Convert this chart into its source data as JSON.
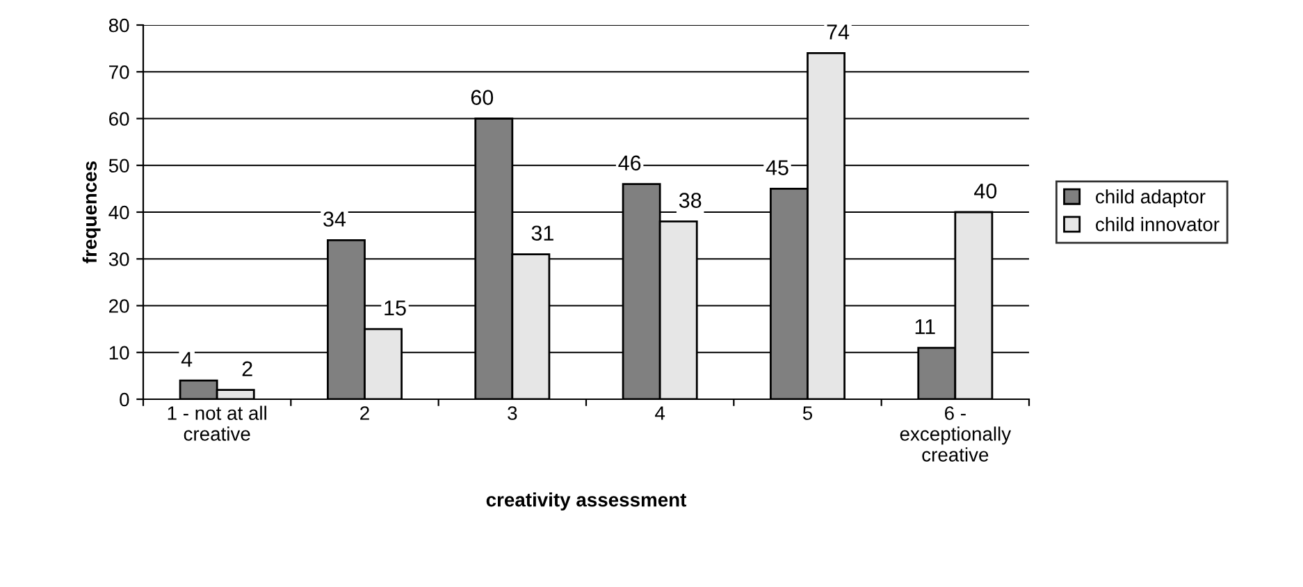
{
  "chart_data": {
    "type": "bar",
    "xlabel": "creativity assessment",
    "ylabel": "frequences",
    "categories": [
      "1 - not at all\ncreative",
      "2",
      "3",
      "4",
      "5",
      "6 -\nexceptionally\ncreative"
    ],
    "series": [
      {
        "name": "child adaptor",
        "color": "#808080",
        "values": [
          4,
          34,
          60,
          46,
          45,
          11
        ]
      },
      {
        "name": "child innovator",
        "color": "#e6e6e6",
        "values": [
          2,
          15,
          31,
          38,
          74,
          40
        ]
      }
    ],
    "ylim": [
      0,
      80
    ],
    "yticks": [
      0,
      10,
      20,
      30,
      40,
      50,
      60,
      70,
      80
    ],
    "grid": "y",
    "legend": "right",
    "data_labels": true
  }
}
